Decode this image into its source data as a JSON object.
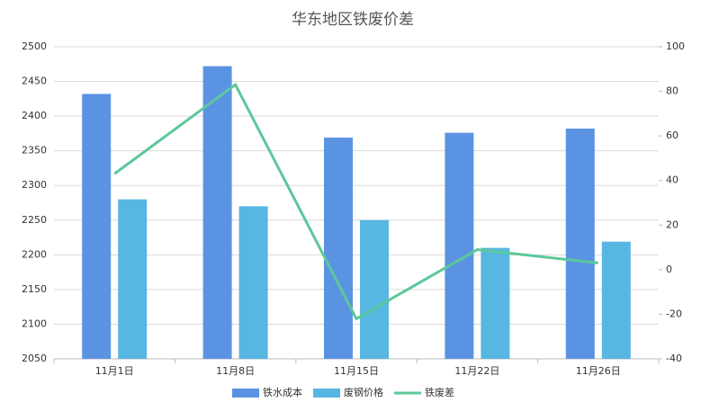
{
  "chart_data": {
    "type": "bar",
    "title": "华东地区铁废价差",
    "categories": [
      "11月1日",
      "11月8日",
      "11月15日",
      "11月22日",
      "11月26日"
    ],
    "series": [
      {
        "name": "铁水成本",
        "color": "#5b93e3",
        "type": "bar",
        "values": [
          2432,
          2472,
          2369,
          2376,
          2382
        ]
      },
      {
        "name": "废钢价格",
        "color": "#58b6e2",
        "type": "bar",
        "values": [
          2280,
          2270,
          2250,
          2210,
          2219
        ]
      },
      {
        "name": "铁废差",
        "color": "#5cc89a",
        "type": "line",
        "axis": "y2",
        "values": [
          43,
          83,
          -22,
          9,
          3
        ]
      }
    ],
    "ylim": [
      2050,
      2500
    ],
    "yticks": [
      2050,
      2100,
      2150,
      2200,
      2250,
      2300,
      2350,
      2400,
      2450,
      2500
    ],
    "y2lim": [
      -40,
      100
    ],
    "y2ticks": [
      -40,
      -20,
      0,
      20,
      40,
      60,
      80,
      100
    ],
    "grid": true,
    "legend": "bottom"
  }
}
